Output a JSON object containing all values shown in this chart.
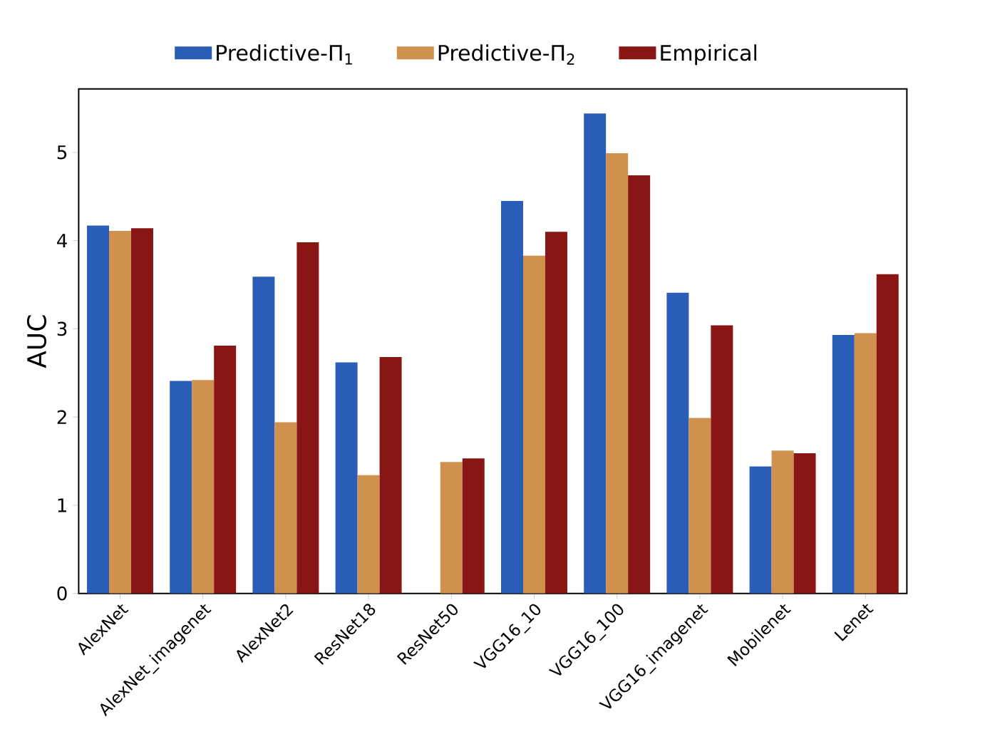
{
  "chart_data": {
    "type": "bar",
    "ylabel": "AUC",
    "categories": [
      "AlexNet",
      "AlexNet_imagenet",
      "AlexNet2",
      "ResNet18",
      "ResNet50",
      "VGG16_10",
      "VGG16_100",
      "VGG16_imagenet",
      "Mobilenet",
      "Lenet"
    ],
    "series": [
      {
        "name": "Predictive-Π$_{1}$",
        "color": "#2a5db8",
        "values": [
          4.17,
          2.41,
          3.59,
          2.62,
          null,
          4.45,
          5.44,
          3.41,
          1.44,
          2.93
        ]
      },
      {
        "name": "Predictive-Π$_{2}$",
        "color": "#d0904e",
        "values": [
          4.11,
          2.42,
          1.94,
          1.34,
          1.49,
          3.83,
          4.99,
          1.99,
          1.62,
          2.95
        ]
      },
      {
        "name": "Empirical",
        "color": "#8a1515",
        "values": [
          4.14,
          2.81,
          3.98,
          2.68,
          1.53,
          4.1,
          4.74,
          3.04,
          1.59,
          3.62
        ]
      }
    ],
    "ylim": [
      0,
      5.72
    ],
    "yticks": [
      0,
      1,
      2,
      3,
      4,
      5
    ],
    "legend": "top",
    "grid": false
  }
}
